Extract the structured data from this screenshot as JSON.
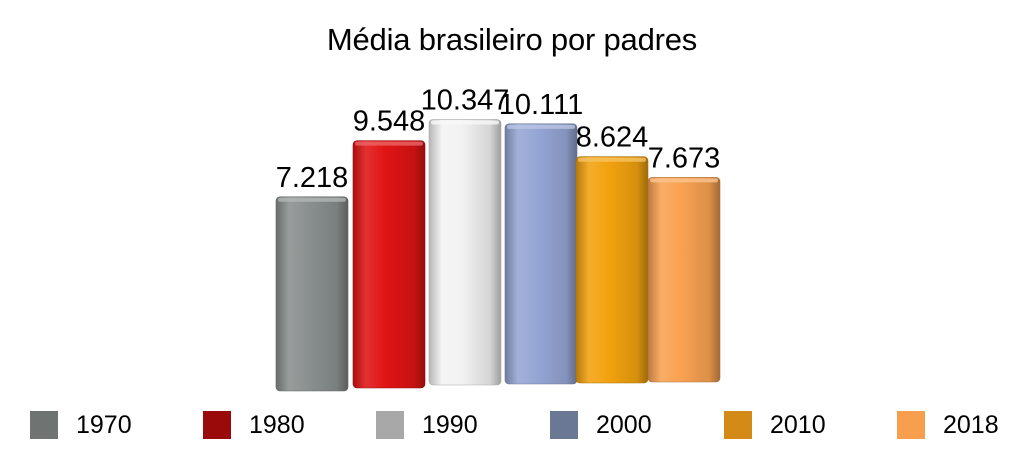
{
  "chart_data": {
    "type": "bar",
    "title": "Média brasileiro por padres",
    "categories": [
      "1970",
      "1980",
      "1990",
      "2000",
      "2010",
      "2018"
    ],
    "values": [
      7.218,
      9.548,
      10.347,
      10.111,
      8.624,
      7.673
    ],
    "value_labels": [
      "7.218",
      "9.548",
      "10.347",
      "10.111",
      "8.624",
      "7.673"
    ],
    "colors": {
      "bars": [
        "#8a908f",
        "#e01414",
        "#f2f2f2",
        "#95a6d4",
        "#f2a20f",
        "#f9a252"
      ],
      "legend": [
        "#6f7472",
        "#9b0a0a",
        "#a8a8a8",
        "#6a7896",
        "#d48a16",
        "#f79e4f"
      ]
    },
    "legend_position": "bottom",
    "grid": false,
    "style": "3d-bars"
  }
}
